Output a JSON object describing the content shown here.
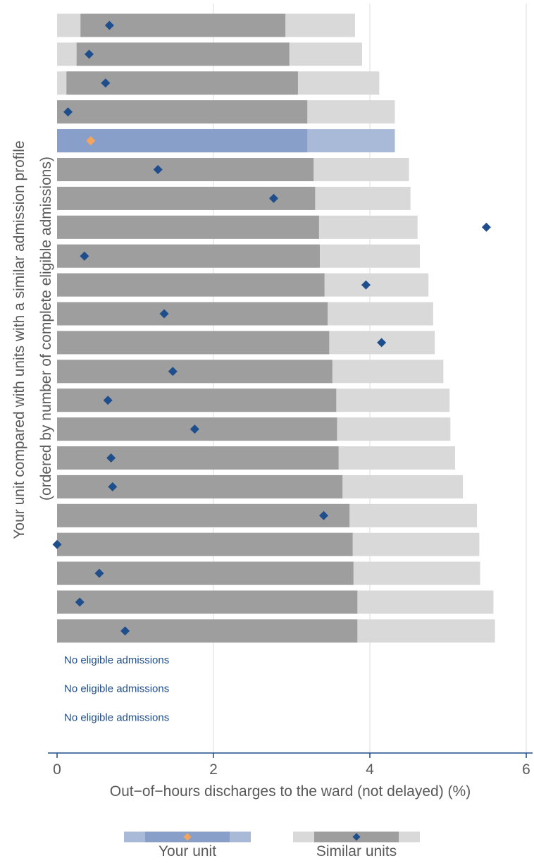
{
  "chart_data": {
    "type": "bar",
    "orientation": "horizontal",
    "ylabel_line1": "Your unit compared with units with a similar admission profile",
    "ylabel_line2": "(ordered by number of complete eligible admissions)",
    "xlabel": "Out−of−hours discharges to the ward (not delayed) (%)",
    "xlim": [
      0,
      6
    ],
    "xticks": [
      "0",
      "2",
      "4",
      "6"
    ],
    "xtick_values": [
      0,
      2,
      4,
      6
    ],
    "grid": "vertical",
    "colors": {
      "similar_outer": "#d9d9d9",
      "similar_inner": "#9e9e9e",
      "similar_point": "#1f4e8c",
      "your_outer": "#a9b9d8",
      "your_inner": "#889fc9",
      "your_point": "#f5a55a",
      "axis": "#1f4e8c",
      "grid": "#dcdcdc"
    },
    "rows": [
      {
        "unit": "similar",
        "outer": [
          0.0,
          3.81
        ],
        "inner": [
          0.3,
          2.92
        ],
        "value": 0.67
      },
      {
        "unit": "similar",
        "outer": [
          0.0,
          3.9
        ],
        "inner": [
          0.25,
          2.97
        ],
        "value": 0.41
      },
      {
        "unit": "similar",
        "outer": [
          0.0,
          4.12
        ],
        "inner": [
          0.12,
          3.08
        ],
        "value": 0.62
      },
      {
        "unit": "similar",
        "outer": [
          0.0,
          4.32
        ],
        "inner": [
          0.0,
          3.2
        ],
        "value": 0.14
      },
      {
        "unit": "your",
        "outer": [
          0.0,
          4.32
        ],
        "inner": [
          0.0,
          3.2
        ],
        "value": 0.43
      },
      {
        "unit": "similar",
        "outer": [
          0.0,
          4.5
        ],
        "inner": [
          0.0,
          3.28
        ],
        "value": 1.29
      },
      {
        "unit": "similar",
        "outer": [
          0.0,
          4.52
        ],
        "inner": [
          0.0,
          3.3
        ],
        "value": 2.77
      },
      {
        "unit": "similar",
        "outer": [
          0.0,
          4.61
        ],
        "inner": [
          0.0,
          3.35
        ],
        "value": 5.49
      },
      {
        "unit": "similar",
        "outer": [
          0.0,
          4.64
        ],
        "inner": [
          0.0,
          3.36
        ],
        "value": 0.35
      },
      {
        "unit": "similar",
        "outer": [
          0.0,
          4.75
        ],
        "inner": [
          0.0,
          3.42
        ],
        "value": 3.95
      },
      {
        "unit": "similar",
        "outer": [
          0.0,
          4.81
        ],
        "inner": [
          0.0,
          3.46
        ],
        "value": 1.37
      },
      {
        "unit": "similar",
        "outer": [
          0.0,
          4.83
        ],
        "inner": [
          0.0,
          3.48
        ],
        "value": 4.15
      },
      {
        "unit": "similar",
        "outer": [
          0.0,
          4.94
        ],
        "inner": [
          0.0,
          3.52
        ],
        "value": 1.48
      },
      {
        "unit": "similar",
        "outer": [
          0.0,
          5.02
        ],
        "inner": [
          0.0,
          3.57
        ],
        "value": 0.65
      },
      {
        "unit": "similar",
        "outer": [
          0.0,
          5.03
        ],
        "inner": [
          0.0,
          3.58
        ],
        "value": 1.76
      },
      {
        "unit": "similar",
        "outer": [
          0.0,
          5.09
        ],
        "inner": [
          0.0,
          3.6
        ],
        "value": 0.69
      },
      {
        "unit": "similar",
        "outer": [
          0.0,
          5.19
        ],
        "inner": [
          0.0,
          3.65
        ],
        "value": 0.71
      },
      {
        "unit": "similar",
        "outer": [
          0.0,
          5.37
        ],
        "inner": [
          0.0,
          3.74
        ],
        "value": 3.41
      },
      {
        "unit": "similar",
        "outer": [
          0.0,
          5.4
        ],
        "inner": [
          0.0,
          3.78
        ],
        "value": 0.0
      },
      {
        "unit": "similar",
        "outer": [
          0.0,
          5.41
        ],
        "inner": [
          0.0,
          3.79
        ],
        "value": 0.54
      },
      {
        "unit": "similar",
        "outer": [
          0.0,
          5.58
        ],
        "inner": [
          0.0,
          3.84
        ],
        "value": 0.29
      },
      {
        "unit": "similar",
        "outer": [
          0.0,
          5.6
        ],
        "inner": [
          0.0,
          3.84
        ],
        "value": 0.87
      },
      {
        "unit": "none",
        "note": "No eligible admissions"
      },
      {
        "unit": "none",
        "note": "No eligible admissions"
      },
      {
        "unit": "none",
        "note": "No eligible admissions"
      }
    ],
    "legend": {
      "placement": "bottom",
      "your_unit_label": "Your unit",
      "similar_units_label": "Similar units"
    }
  }
}
